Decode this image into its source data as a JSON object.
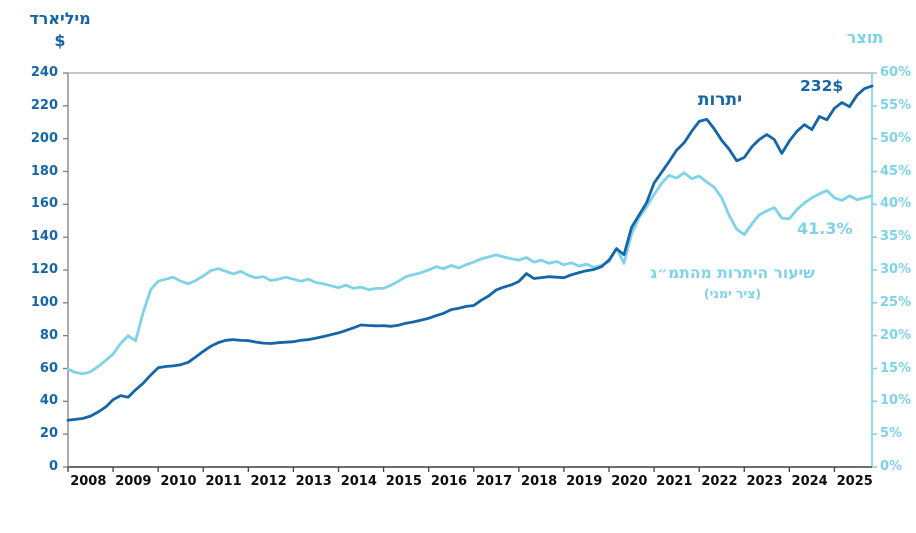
{
  "colors": {
    "dark_blue": "#1566a8",
    "light_blue": "#7ed3e8",
    "axis_top": "#a8a8a8",
    "axis_left": "#808080",
    "axis_bottom": "#3f3f3f",
    "year_label": "#0d0d0d"
  },
  "chart_data": {
    "type": "line",
    "title": "",
    "x_start": 2008.0,
    "x_step_years": 0.1666667,
    "x_axis": {
      "tick_years": [
        2008,
        2009,
        2010,
        2011,
        2012,
        2013,
        2014,
        2015,
        2016,
        2017,
        2018,
        2019,
        2020,
        2021,
        2022,
        2023,
        2024,
        2025
      ],
      "labels": [
        "2008",
        "2009",
        "2010",
        "2011",
        "2012",
        "2013",
        "2014",
        "2015",
        "2016",
        "2017",
        "2018",
        "2019",
        "2020",
        "2021",
        "2022",
        "2023",
        "2024",
        "2025"
      ]
    },
    "left_axis": {
      "title_line1": "מיליארד",
      "title_line2": "$",
      "min": 0,
      "max": 240,
      "tick_values": [
        0,
        20,
        40,
        60,
        80,
        100,
        120,
        140,
        160,
        180,
        200,
        220,
        240
      ],
      "tick_labels": [
        "0",
        "20",
        "40",
        "60",
        "80",
        "100",
        "120",
        "140",
        "160",
        "180",
        "200",
        "220",
        "240"
      ]
    },
    "right_axis": {
      "title": "תוצר",
      "min": 0,
      "max": 60,
      "tick_values": [
        0,
        5,
        10,
        15,
        20,
        25,
        30,
        35,
        40,
        45,
        50,
        55,
        60
      ],
      "tick_labels": [
        "0%",
        "5%",
        "10%",
        "15%",
        "20%",
        "25%",
        "30%",
        "35%",
        "40%",
        "45%",
        "50%",
        "55%",
        "60%"
      ]
    },
    "series": [
      {
        "name": "יתרות",
        "axis": "left",
        "color": "#1566a8",
        "values": [
          28.5,
          29.0,
          29.6,
          31.0,
          33.5,
          36.5,
          41.0,
          43.5,
          42.5,
          47.0,
          51.0,
          56.0,
          60.5,
          61.2,
          61.6,
          62.3,
          63.8,
          67.0,
          70.5,
          73.5,
          75.8,
          77.2,
          77.6,
          77.1,
          77.0,
          76.1,
          75.5,
          75.2,
          75.7,
          76.0,
          76.3,
          77.2,
          77.6,
          78.5,
          79.5,
          80.6,
          81.7,
          83.2,
          84.8,
          86.5,
          86.2,
          86.0,
          86.1,
          85.7,
          86.4,
          87.6,
          88.4,
          89.5,
          90.6,
          92.2,
          93.6,
          95.9,
          96.7,
          97.8,
          98.4,
          101.6,
          104.2,
          107.9,
          109.6,
          110.9,
          113.0,
          117.8,
          114.8,
          115.4,
          115.9,
          115.6,
          115.3,
          117.1,
          118.4,
          119.6,
          120.3,
          122.0,
          126.0,
          133.0,
          129.3,
          146.0,
          153.5,
          161.0,
          173.0,
          179.5,
          186.0,
          193.0,
          197.5,
          204.5,
          210.5,
          211.8,
          206.0,
          199.0,
          193.5,
          186.5,
          188.5,
          195.0,
          199.5,
          202.5,
          199.5,
          191.0,
          198.5,
          204.5,
          208.5,
          205.5,
          213.5,
          211.5,
          218.5,
          222.0,
          219.5,
          226.5,
          230.5,
          232.0
        ]
      },
      {
        "name": "שיעור היתרות מהתמ״ג (ציר ימני)",
        "axis": "right",
        "color": "#7ed3e8",
        "values": [
          14.9,
          14.4,
          14.2,
          14.5,
          15.3,
          16.2,
          17.2,
          18.8,
          20.0,
          19.2,
          23.5,
          27.0,
          28.3,
          28.6,
          28.9,
          28.3,
          27.9,
          28.4,
          29.1,
          29.9,
          30.2,
          29.8,
          29.4,
          29.8,
          29.2,
          28.8,
          29.0,
          28.4,
          28.6,
          28.9,
          28.6,
          28.3,
          28.6,
          28.1,
          27.9,
          27.6,
          27.3,
          27.7,
          27.2,
          27.4,
          27.0,
          27.2,
          27.2,
          27.7,
          28.3,
          29.0,
          29.3,
          29.6,
          30.0,
          30.5,
          30.2,
          30.7,
          30.3,
          30.8,
          31.2,
          31.7,
          32.0,
          32.3,
          32.0,
          31.7,
          31.5,
          31.9,
          31.2,
          31.5,
          31.0,
          31.3,
          30.8,
          31.1,
          30.6,
          30.9,
          30.4,
          30.7,
          31.3,
          33.3,
          31.0,
          35.5,
          38.0,
          39.6,
          41.5,
          43.2,
          44.4,
          44.0,
          44.8,
          43.9,
          44.3,
          43.4,
          42.6,
          41.0,
          38.3,
          36.2,
          35.4,
          37.0,
          38.4,
          39.0,
          39.5,
          37.9,
          37.8,
          39.2,
          40.2,
          41.0,
          41.6,
          42.1,
          41.0,
          40.6,
          41.3,
          40.7,
          41.0,
          41.3
        ]
      }
    ],
    "annotations": {
      "reserves_label": "יתרות",
      "reserves_end_value": "232$",
      "ratio_end_value": "41.3%",
      "ratio_label_line1": "שיעור היתרות מהתמ״ג",
      "ratio_label_line2": "(ציר ימני)"
    },
    "layout_hints": {
      "grid": "off",
      "legend": "inline-annotations",
      "left_axis_color": "#1566a8",
      "right_axis_color": "#7ed3e8"
    }
  }
}
